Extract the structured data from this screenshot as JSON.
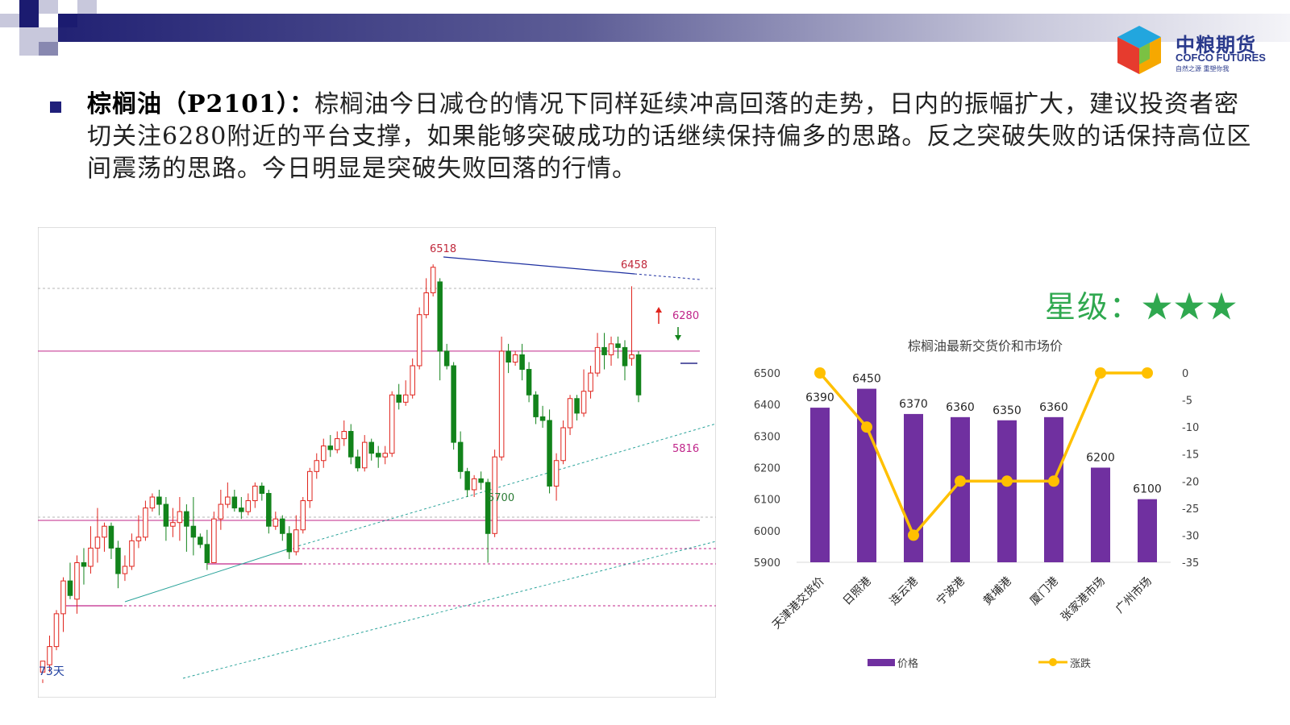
{
  "logo": {
    "name_cn": "中粮期货",
    "name_en": "COFCO FUTURES",
    "slogan": "自然之源 重塑你我"
  },
  "paragraph": {
    "lead": "棕榈油（P2101）：",
    "body": "棕榈油今日减仓的情况下同样延续冲高回落的走势，日内的振幅扩大，建议投资者密切关注6280附近的平台支撑，如果能够突破成功的话继续保持偏多的思路。反之突破失败的话保持高位区间震荡的思路。今日明显是突破失败回落的行情。"
  },
  "rating": {
    "label": "星级：",
    "stars": "★★★"
  },
  "colors": {
    "up": "#e0231c",
    "down": "#12831b",
    "bar": "#7030a0",
    "line": "#ffc000",
    "rating": "#2fa84f",
    "brand": "#2a3a8c"
  },
  "kline": {
    "days_label": "73天",
    "labels": {
      "high1": "6518",
      "high2": "6458",
      "low": "5700",
      "level_upper": "6280",
      "level_lower": "5816"
    }
  },
  "chart_data": [
    {
      "type": "candlestick",
      "title": "",
      "price_range": [
        5330,
        6620
      ],
      "annotated_levels": [
        6280,
        5816
      ],
      "annotated_extremes": {
        "high": [
          6518,
          6458
        ],
        "low": 5700
      },
      "candles": [
        [
          5400,
          5430,
          5380,
          5370
        ],
        [
          5420,
          5470,
          5500,
          5400
        ],
        [
          5470,
          5560,
          5570,
          5460
        ],
        [
          5560,
          5650,
          5660,
          5510
        ],
        [
          5650,
          5610,
          5700,
          5600
        ],
        [
          5600,
          5700,
          5720,
          5560
        ],
        [
          5700,
          5690,
          5740,
          5640
        ],
        [
          5690,
          5740,
          5800,
          5670
        ],
        [
          5740,
          5770,
          5850,
          5700
        ],
        [
          5770,
          5800,
          5810,
          5730
        ],
        [
          5800,
          5740,
          5810,
          5710
        ],
        [
          5740,
          5670,
          5760,
          5630
        ],
        [
          5670,
          5690,
          5720,
          5650
        ],
        [
          5690,
          5760,
          5780,
          5680
        ],
        [
          5760,
          5770,
          5830,
          5740
        ],
        [
          5770,
          5850,
          5870,
          5760
        ],
        [
          5850,
          5880,
          5890,
          5840
        ],
        [
          5880,
          5860,
          5900,
          5830
        ],
        [
          5860,
          5800,
          5880,
          5760
        ],
        [
          5800,
          5810,
          5850,
          5770
        ],
        [
          5810,
          5840,
          5880,
          5760
        ],
        [
          5840,
          5800,
          5860,
          5730
        ],
        [
          5800,
          5770,
          5880,
          5720
        ],
        [
          5770,
          5750,
          5780,
          5740
        ],
        [
          5750,
          5700,
          5790,
          5680
        ],
        [
          5700,
          5820,
          5840,
          5700
        ],
        [
          5820,
          5860,
          5900,
          5790
        ],
        [
          5860,
          5880,
          5920,
          5850
        ],
        [
          5880,
          5850,
          5900,
          5840
        ],
        [
          5850,
          5840,
          5880,
          5820
        ],
        [
          5840,
          5870,
          5890,
          5830
        ],
        [
          5870,
          5910,
          5920,
          5850
        ],
        [
          5910,
          5890,
          5920,
          5870
        ],
        [
          5890,
          5800,
          5900,
          5780
        ],
        [
          5800,
          5820,
          5840,
          5790
        ],
        [
          5820,
          5780,
          5830,
          5760
        ],
        [
          5780,
          5730,
          5800,
          5710
        ],
        [
          5730,
          5790,
          5830,
          5720
        ],
        [
          5790,
          5870,
          5880,
          5780
        ],
        [
          5870,
          5950,
          5960,
          5850
        ],
        [
          5950,
          5980,
          6000,
          5930
        ],
        [
          5980,
          6020,
          6040,
          5960
        ],
        [
          6020,
          6010,
          6050,
          5990
        ],
        [
          6010,
          6040,
          6060,
          6000
        ],
        [
          6040,
          6060,
          6090,
          6020
        ],
        [
          6060,
          5990,
          6080,
          5970
        ],
        [
          5990,
          5960,
          6010,
          5950
        ],
        [
          5960,
          6030,
          6050,
          5950
        ],
        [
          6030,
          6000,
          6040,
          5980
        ],
        [
          6000,
          5990,
          6020,
          5960
        ],
        [
          5990,
          6000,
          6020,
          5970
        ],
        [
          6000,
          6160,
          6170,
          5990
        ],
        [
          6160,
          6140,
          6190,
          6120
        ],
        [
          6140,
          6160,
          6200,
          6130
        ],
        [
          6160,
          6240,
          6260,
          6150
        ],
        [
          6240,
          6380,
          6400,
          6230
        ],
        [
          6380,
          6440,
          6480,
          6370
        ],
        [
          6440,
          6510,
          6518,
          6430
        ],
        [
          6470,
          6280,
          6480,
          6200
        ],
        [
          6280,
          6240,
          6300,
          6230
        ],
        [
          6240,
          6030,
          6250,
          6010
        ],
        [
          6030,
          5950,
          6060,
          5930
        ],
        [
          5950,
          5900,
          5960,
          5880
        ],
        [
          5900,
          5930,
          5940,
          5880
        ],
        [
          5930,
          5920,
          5950,
          5900
        ],
        [
          5920,
          5780,
          5930,
          5700
        ],
        [
          5780,
          5990,
          6010,
          5770
        ],
        [
          5990,
          6280,
          6320,
          5980
        ],
        [
          6280,
          6250,
          6300,
          6220
        ],
        [
          6250,
          6270,
          6280,
          6240
        ],
        [
          6270,
          6230,
          6300,
          6200
        ],
        [
          6230,
          6160,
          6250,
          6140
        ],
        [
          6160,
          6100,
          6170,
          6080
        ],
        [
          6100,
          6090,
          6130,
          6070
        ],
        [
          6090,
          5910,
          6120,
          5890
        ],
        [
          5910,
          5980,
          6000,
          5870
        ],
        [
          5980,
          6070,
          6090,
          5970
        ],
        [
          6070,
          6150,
          6160,
          6050
        ],
        [
          6150,
          6110,
          6160,
          6090
        ],
        [
          6110,
          6170,
          6230,
          6100
        ],
        [
          6170,
          6220,
          6240,
          6150
        ],
        [
          6220,
          6290,
          6330,
          6210
        ],
        [
          6290,
          6270,
          6330,
          6230
        ],
        [
          6270,
          6300,
          6320,
          6240
        ],
        [
          6300,
          6290,
          6320,
          6260
        ],
        [
          6290,
          6240,
          6310,
          6200
        ],
        [
          6260,
          6270,
          6458,
          6240
        ],
        [
          6270,
          6160,
          6280,
          6140
        ]
      ]
    },
    {
      "type": "bar+line",
      "title": "棕榈油最新交货价和市场价",
      "categories": [
        "天津港交货价",
        "日照港",
        "连云港",
        "宁波港",
        "黄埔港",
        "厦门港",
        "张家港市场",
        "广州市场"
      ],
      "series": [
        {
          "name": "价格",
          "type": "bar",
          "axis": "left",
          "values": [
            6390,
            6450,
            6370,
            6360,
            6350,
            6360,
            6200,
            6100
          ]
        },
        {
          "name": "涨跌",
          "type": "line",
          "axis": "right",
          "values": [
            0,
            -10,
            -30,
            -20,
            -20,
            -20,
            0,
            0
          ]
        }
      ],
      "ylim_left": [
        5900,
        6500
      ],
      "yticks_left": [
        "6500",
        "6400",
        "6300",
        "6200",
        "6100",
        "6000",
        "5900"
      ],
      "ylim_right": [
        -35,
        0
      ],
      "yticks_right": [
        "0",
        "-5",
        "-10",
        "-15",
        "-20",
        "-25",
        "-30",
        "-35"
      ],
      "legend": "bottom"
    }
  ]
}
